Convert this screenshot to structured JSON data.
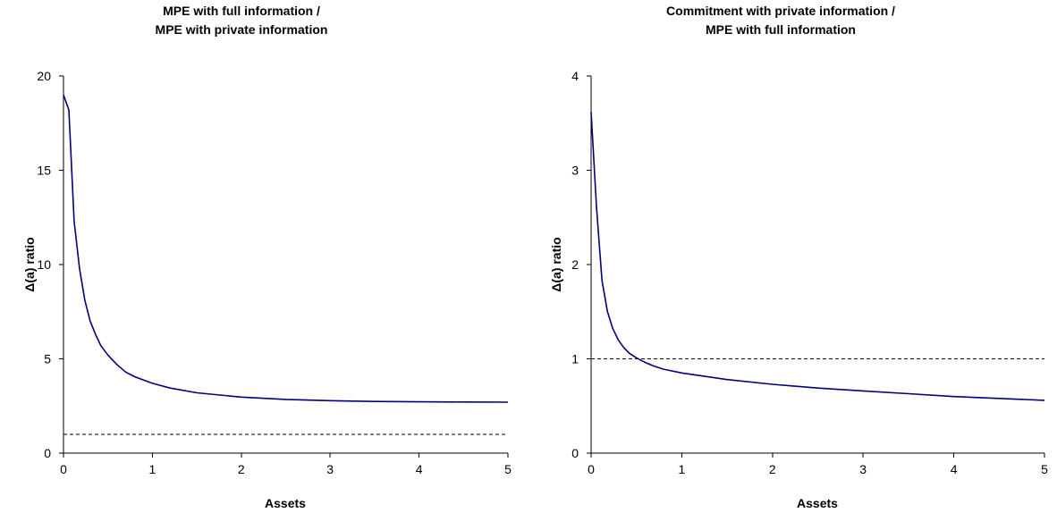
{
  "chart_data": [
    {
      "type": "line",
      "title_lines": [
        "MPE with full information /",
        "MPE with private information"
      ],
      "xlabel": "Assets",
      "ylabel": "Δ(a) ratio",
      "xlim": [
        0,
        5
      ],
      "ylim": [
        0,
        20
      ],
      "xticks": [
        "0",
        "1",
        "2",
        "3",
        "4",
        "5"
      ],
      "yticks": [
        "0",
        "5",
        "10",
        "15",
        "20"
      ],
      "grid": false,
      "line_color": "#000080",
      "x": [
        0,
        0.06,
        0.12,
        0.18,
        0.24,
        0.3,
        0.36,
        0.42,
        0.5,
        0.6,
        0.7,
        0.8,
        1.0,
        1.2,
        1.5,
        2.0,
        2.5,
        3.0,
        3.5,
        4.0,
        4.5,
        5.0
      ],
      "y": [
        19.0,
        18.2,
        12.3,
        9.8,
        8.1,
        7.0,
        6.3,
        5.7,
        5.2,
        4.7,
        4.3,
        4.05,
        3.7,
        3.45,
        3.2,
        2.97,
        2.85,
        2.78,
        2.74,
        2.72,
        2.71,
        2.7
      ],
      "reference_line": 1
    },
    {
      "type": "line",
      "title_lines": [
        "Commitment with private information /",
        "MPE with full information"
      ],
      "xlabel": "Assets",
      "ylabel": "Δ(a) ratio",
      "xlim": [
        0,
        5
      ],
      "ylim": [
        0,
        4
      ],
      "xticks": [
        "0",
        "1",
        "2",
        "3",
        "4",
        "5"
      ],
      "yticks": [
        "0",
        "1",
        "2",
        "3",
        "4"
      ],
      "grid": false,
      "line_color": "#000080",
      "x": [
        0,
        0.06,
        0.12,
        0.18,
        0.24,
        0.3,
        0.36,
        0.42,
        0.5,
        0.6,
        0.7,
        0.8,
        1.0,
        1.5,
        2.0,
        2.5,
        3.0,
        3.5,
        4.0,
        4.5,
        5.0
      ],
      "y": [
        3.62,
        2.6,
        1.83,
        1.5,
        1.32,
        1.2,
        1.12,
        1.06,
        1.01,
        0.96,
        0.92,
        0.89,
        0.85,
        0.78,
        0.73,
        0.69,
        0.66,
        0.63,
        0.6,
        0.58,
        0.56
      ],
      "reference_line": 1
    }
  ]
}
